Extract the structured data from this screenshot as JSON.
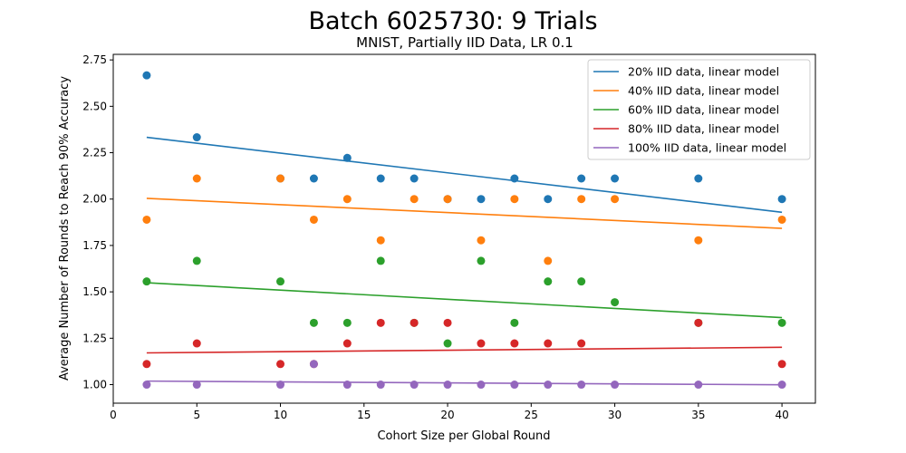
{
  "chart_data": {
    "type": "scatter",
    "title": "Batch 6025730: 9 Trials",
    "subtitle": "MNIST, Partially IID Data, LR 0.1",
    "xlabel": "Cohort Size per Global Round",
    "ylabel": "Average Number of Rounds to Reach 90% Accuracy",
    "xlim": [
      0,
      42
    ],
    "ylim": [
      0.9,
      2.78
    ],
    "xticks": [
      0,
      5,
      10,
      15,
      20,
      25,
      30,
      35,
      40
    ],
    "yticks": [
      1.0,
      1.25,
      1.5,
      1.75,
      2.0,
      2.25,
      2.5,
      2.75
    ],
    "ytick_labels": [
      "1.00",
      "1.25",
      "1.50",
      "1.75",
      "2.00",
      "2.25",
      "2.50",
      "2.75"
    ],
    "grid": false,
    "legend_position": "top-right",
    "series": [
      {
        "name": "20% IID data, linear model",
        "color": "#1f77b4",
        "points": [
          [
            2,
            2.667
          ],
          [
            5,
            2.333
          ],
          [
            10,
            2.111
          ],
          [
            12,
            2.111
          ],
          [
            14,
            2.222
          ],
          [
            16,
            2.111
          ],
          [
            18,
            2.111
          ],
          [
            20,
            2.0
          ],
          [
            22,
            2.0
          ],
          [
            24,
            2.111
          ],
          [
            26,
            2.0
          ],
          [
            28,
            2.111
          ],
          [
            30,
            2.111
          ],
          [
            35,
            2.111
          ],
          [
            40,
            2.0
          ]
        ],
        "fit": [
          [
            2,
            2.333
          ],
          [
            40,
            1.929
          ]
        ]
      },
      {
        "name": "40% IID data, linear model",
        "color": "#ff7f0e",
        "points": [
          [
            2,
            1.889
          ],
          [
            5,
            2.111
          ],
          [
            10,
            2.111
          ],
          [
            12,
            1.889
          ],
          [
            14,
            2.0
          ],
          [
            16,
            1.778
          ],
          [
            18,
            2.0
          ],
          [
            20,
            2.0
          ],
          [
            22,
            1.778
          ],
          [
            24,
            2.0
          ],
          [
            26,
            1.667
          ],
          [
            28,
            2.0
          ],
          [
            30,
            2.0
          ],
          [
            35,
            1.778
          ],
          [
            40,
            1.889
          ]
        ],
        "fit": [
          [
            2,
            2.004
          ],
          [
            40,
            1.842
          ]
        ]
      },
      {
        "name": "60% IID data, linear model",
        "color": "#2ca02c",
        "points": [
          [
            2,
            1.556
          ],
          [
            5,
            1.667
          ],
          [
            10,
            1.556
          ],
          [
            12,
            1.333
          ],
          [
            14,
            1.333
          ],
          [
            16,
            1.667
          ],
          [
            18,
            1.333
          ],
          [
            20,
            1.222
          ],
          [
            22,
            1.667
          ],
          [
            24,
            1.333
          ],
          [
            26,
            1.556
          ],
          [
            28,
            1.556
          ],
          [
            30,
            1.444
          ],
          [
            35,
            1.333
          ],
          [
            40,
            1.333
          ]
        ],
        "fit": [
          [
            2,
            1.549
          ],
          [
            40,
            1.361
          ]
        ]
      },
      {
        "name": "80% IID data, linear model",
        "color": "#d62728",
        "points": [
          [
            2,
            1.111
          ],
          [
            5,
            1.222
          ],
          [
            10,
            1.111
          ],
          [
            12,
            1.111
          ],
          [
            14,
            1.222
          ],
          [
            16,
            1.333
          ],
          [
            18,
            1.333
          ],
          [
            20,
            1.333
          ],
          [
            22,
            1.222
          ],
          [
            24,
            1.222
          ],
          [
            26,
            1.222
          ],
          [
            28,
            1.222
          ],
          [
            35,
            1.333
          ],
          [
            40,
            1.111
          ]
        ],
        "fit": [
          [
            2,
            1.171
          ],
          [
            40,
            1.201
          ]
        ]
      },
      {
        "name": "100% IID data, linear model",
        "color": "#9467bd",
        "points": [
          [
            2,
            1.0
          ],
          [
            5,
            1.0
          ],
          [
            10,
            1.0
          ],
          [
            12,
            1.111
          ],
          [
            14,
            1.0
          ],
          [
            16,
            1.0
          ],
          [
            18,
            1.0
          ],
          [
            20,
            1.0
          ],
          [
            22,
            1.0
          ],
          [
            24,
            1.0
          ],
          [
            26,
            1.0
          ],
          [
            28,
            1.0
          ],
          [
            30,
            1.0
          ],
          [
            35,
            1.0
          ],
          [
            40,
            1.0
          ]
        ],
        "fit": [
          [
            2,
            1.019
          ],
          [
            40,
            0.999
          ]
        ]
      }
    ]
  }
}
